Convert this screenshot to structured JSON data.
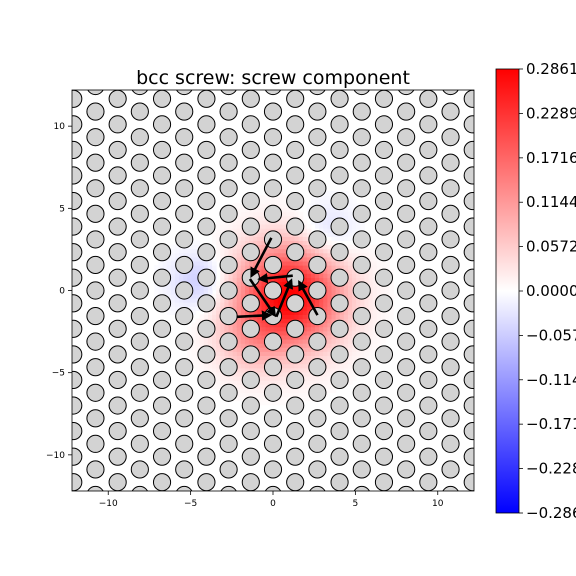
{
  "chart_data": {
    "type": "heatmap",
    "title": "bcc screw: screw component",
    "xlabel": "",
    "ylabel": "",
    "xlim": [
      -12.2,
      12.2
    ],
    "ylim": [
      -12.2,
      12.2
    ],
    "xticks": [
      -10,
      -5,
      0,
      5,
      10
    ],
    "yticks": [
      -10,
      -5,
      0,
      5,
      10
    ],
    "xtick_labels": [
      "−10",
      "−5",
      "0",
      "5",
      "10"
    ],
    "ytick_labels": [
      "−10",
      "−5",
      "0",
      "5",
      "10"
    ],
    "grid": false,
    "colormap": "bwr",
    "colorbar": {
      "vmin": -0.2861,
      "vmax": 0.2861,
      "ticks": [
        0.2861,
        0.2289,
        0.1716,
        0.1144,
        0.0572,
        0.0,
        -0.0572,
        -0.1144,
        -0.1716,
        -0.2289,
        -0.2861
      ],
      "tick_labels": [
        "0.2861",
        "0.2289",
        "0.1716",
        "0.1144",
        "0.0572",
        "0.0000",
        "−0.0572",
        "−0.1144",
        "−0.1716",
        "−0.2289",
        "−0.2861"
      ]
    },
    "lattice": {
      "a1": [
        2.694,
        0
      ],
      "a2": [
        1.347,
        2.333
      ],
      "basis": [
        [
          0,
          0
        ],
        [
          1.347,
          -0.778
        ],
        [
          0,
          -1.556
        ]
      ]
    },
    "field_blobs": [
      {
        "center": [
          1.0,
          -0.3
        ],
        "amplitude": 0.2861,
        "sigma": 2.2
      },
      {
        "center": [
          -1.5,
          -3.0
        ],
        "amplitude": 0.06,
        "sigma": 1.5
      },
      {
        "center": [
          -4.5,
          0.6
        ],
        "amplitude": -0.06,
        "sigma": 1.2
      },
      {
        "center": [
          3.2,
          3.5
        ],
        "amplitude": -0.05,
        "sigma": 1.3
      }
    ],
    "core_arrows": [
      {
        "from": [
          -0.1,
          3.2
        ],
        "to": [
          -1.3,
          0.9
        ]
      },
      {
        "from": [
          1.2,
          0.9
        ],
        "to": [
          -0.8,
          0.7
        ]
      },
      {
        "from": [
          -1.4,
          0.7
        ],
        "to": [
          0.1,
          -1.5
        ]
      },
      {
        "from": [
          0.2,
          -1.6
        ],
        "to": [
          1.1,
          0.6
        ]
      },
      {
        "from": [
          -2.2,
          -1.6
        ],
        "to": [
          -0.2,
          -1.5
        ]
      },
      {
        "from": [
          2.7,
          -1.5
        ],
        "to": [
          1.6,
          0.5
        ]
      }
    ]
  }
}
